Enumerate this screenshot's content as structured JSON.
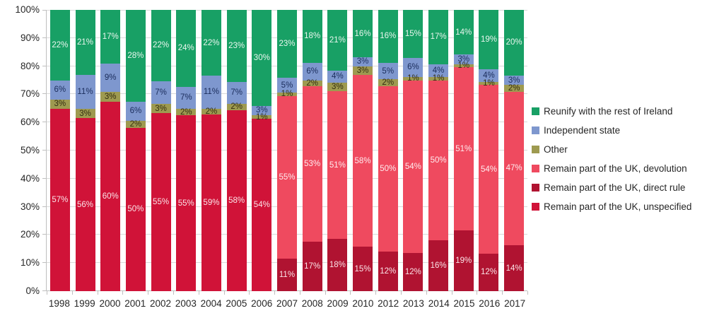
{
  "chart_data": {
    "type": "bar",
    "variant": "stacked-100-percent",
    "title": "",
    "xlabel": "",
    "ylabel": "",
    "categories": [
      "1998",
      "1999",
      "2000",
      "2001",
      "2002",
      "2003",
      "2004",
      "2005",
      "2006",
      "2007",
      "2008",
      "2009",
      "2010",
      "2012",
      "2013",
      "2014",
      "2015",
      "2016",
      "2017"
    ],
    "series": [
      {
        "name": "Reunify with the rest of Ireland",
        "color": "#18A065",
        "label_color": "#E9F6EE",
        "values": [
          22,
          21,
          17,
          28,
          22,
          24,
          22,
          23,
          30,
          23,
          18,
          21,
          16,
          16,
          15,
          17,
          14,
          19,
          20
        ]
      },
      {
        "name": "Independent state",
        "color": "#7E97CE",
        "label_color": "#1B2D5C",
        "values": [
          6,
          11,
          9,
          6,
          7,
          7,
          11,
          7,
          3,
          5,
          6,
          4,
          3,
          5,
          6,
          4,
          3,
          4,
          3
        ]
      },
      {
        "name": "Other",
        "color": "#9E9A50",
        "label_color": "#332D10",
        "values": [
          3,
          3,
          3,
          2,
          3,
          2,
          2,
          2,
          1,
          1,
          2,
          3,
          3,
          2,
          1,
          1,
          1,
          1,
          2
        ]
      },
      {
        "name": "Remain part of the UK, devolution",
        "color": "#EF4A5F",
        "label_color": "#FFECEF",
        "values": [
          0,
          0,
          0,
          0,
          0,
          0,
          0,
          0,
          0,
          55,
          53,
          51,
          58,
          50,
          54,
          50,
          51,
          54,
          47
        ]
      },
      {
        "name": "Remain part of the UK, direct rule",
        "color": "#B01331",
        "label_color": "#FBE4E8",
        "values": [
          0,
          0,
          0,
          0,
          0,
          0,
          0,
          0,
          0,
          11,
          17,
          18,
          15,
          12,
          12,
          16,
          19,
          12,
          14
        ]
      },
      {
        "name": "Remain part of the UK, unspecified",
        "color": "#D01338",
        "label_color": "#FBE4E8",
        "values": [
          57,
          56,
          60,
          50,
          55,
          55,
          59,
          58,
          54,
          0,
          0,
          0,
          0,
          0,
          0,
          0,
          0,
          0,
          0
        ]
      }
    ],
    "stacking_order_bottom_to_top": [
      "Remain part of the UK, unspecified",
      "Remain part of the UK, direct rule",
      "Remain part of the UK, devolution",
      "Other",
      "Independent state",
      "Reunify with the rest of Ireland"
    ],
    "data_label_suffix": "%",
    "y_axis": {
      "min": 0,
      "max": 100,
      "ticks": [
        "0%",
        "10%",
        "20%",
        "30%",
        "40%",
        "50%",
        "60%",
        "70%",
        "80%",
        "90%",
        "100%"
      ]
    },
    "gridlines": true,
    "grid_color": "#D9D9D9",
    "axis_color": "#BFBFBF",
    "legend_position": "right"
  }
}
